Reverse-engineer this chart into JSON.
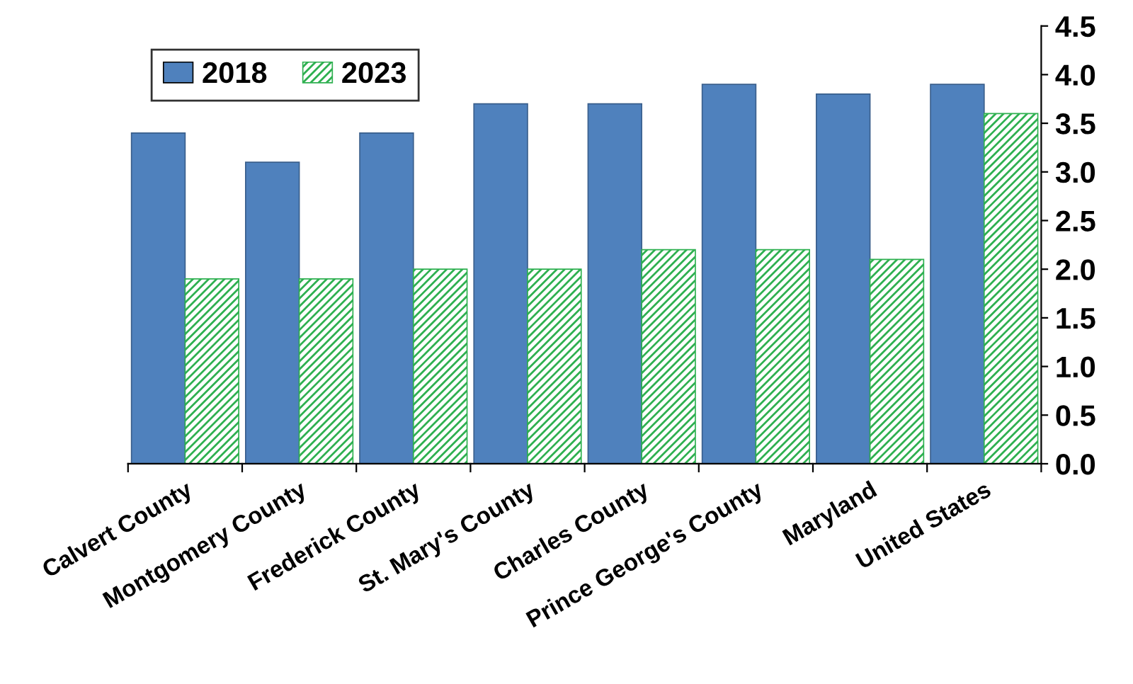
{
  "chart_data": {
    "type": "bar",
    "categories": [
      "Calvert County",
      "Montgomery County",
      "Frederick County",
      "St. Mary's County",
      "Charles County",
      "Prince George's County",
      "Maryland",
      "United States"
    ],
    "series": [
      {
        "name": "2018",
        "color": "#4f81bd",
        "values": [
          3.4,
          3.1,
          3.4,
          3.7,
          3.7,
          3.9,
          3.8,
          3.9
        ]
      },
      {
        "name": "2023",
        "color": "#2eb050",
        "values": [
          1.9,
          1.9,
          2.0,
          2.0,
          2.2,
          2.2,
          2.1,
          3.6
        ]
      }
    ],
    "ylim": [
      0,
      4.5
    ],
    "yticks": [
      {
        "value": 0,
        "label": "0.0"
      },
      {
        "value": 0.5,
        "label": "0.5"
      },
      {
        "value": 1,
        "label": "1.0"
      },
      {
        "value": 1.5,
        "label": "1.5"
      },
      {
        "value": 2,
        "label": "2.0"
      },
      {
        "value": 2.5,
        "label": "2.5"
      },
      {
        "value": 3,
        "label": "3.0"
      },
      {
        "value": 3.5,
        "label": "3.5"
      },
      {
        "value": 4,
        "label": "4.0"
      },
      {
        "value": 4.5,
        "label": "4.5"
      }
    ],
    "grid": false,
    "legend": "top left"
  }
}
